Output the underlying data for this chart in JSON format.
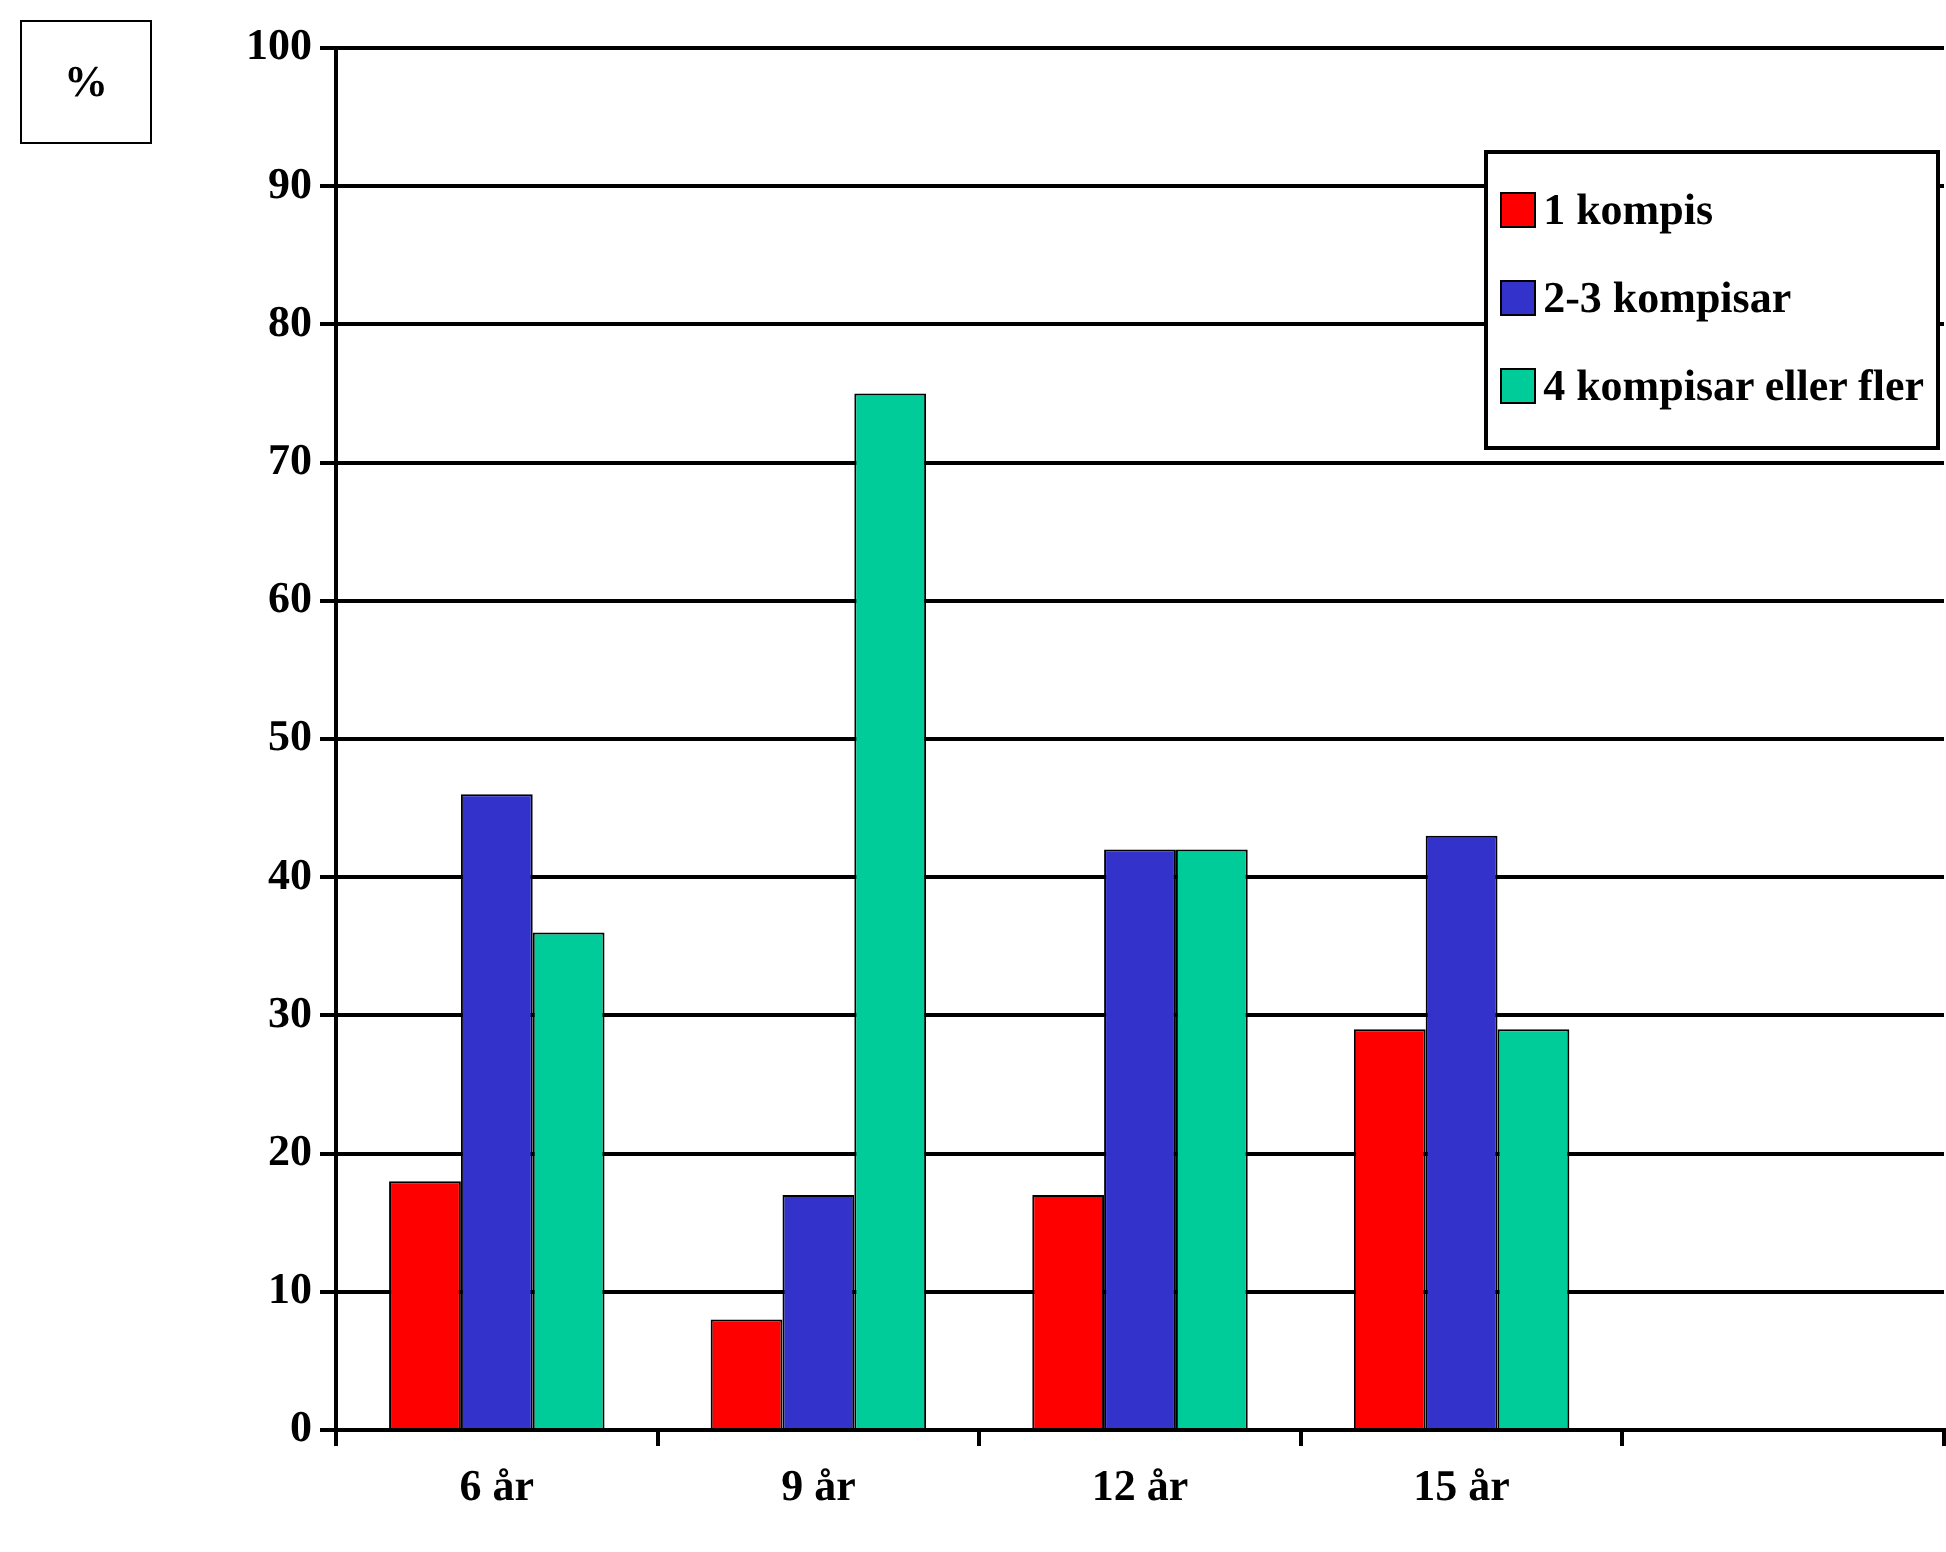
{
  "chart_data": {
    "type": "bar",
    "ylabel": "%",
    "categories": [
      "6 år",
      "9 år",
      "12 år",
      "15 år",
      null
    ],
    "series": [
      {
        "name": "1 kompis",
        "color": "#ff0000",
        "values": [
          18,
          8,
          17,
          29,
          null
        ]
      },
      {
        "name": "2-3 kompisar",
        "color": "#3333cc",
        "values": [
          46,
          17,
          42,
          43,
          null
        ]
      },
      {
        "name": "4 kompisar eller fler",
        "color": "#00cc99",
        "values": [
          36,
          75,
          42,
          29,
          null
        ]
      }
    ],
    "ylim": [
      0,
      100
    ],
    "yticks": [
      0,
      10,
      20,
      30,
      40,
      50,
      60,
      70,
      80,
      90,
      100
    ],
    "grid": "y",
    "legend": "top right"
  }
}
